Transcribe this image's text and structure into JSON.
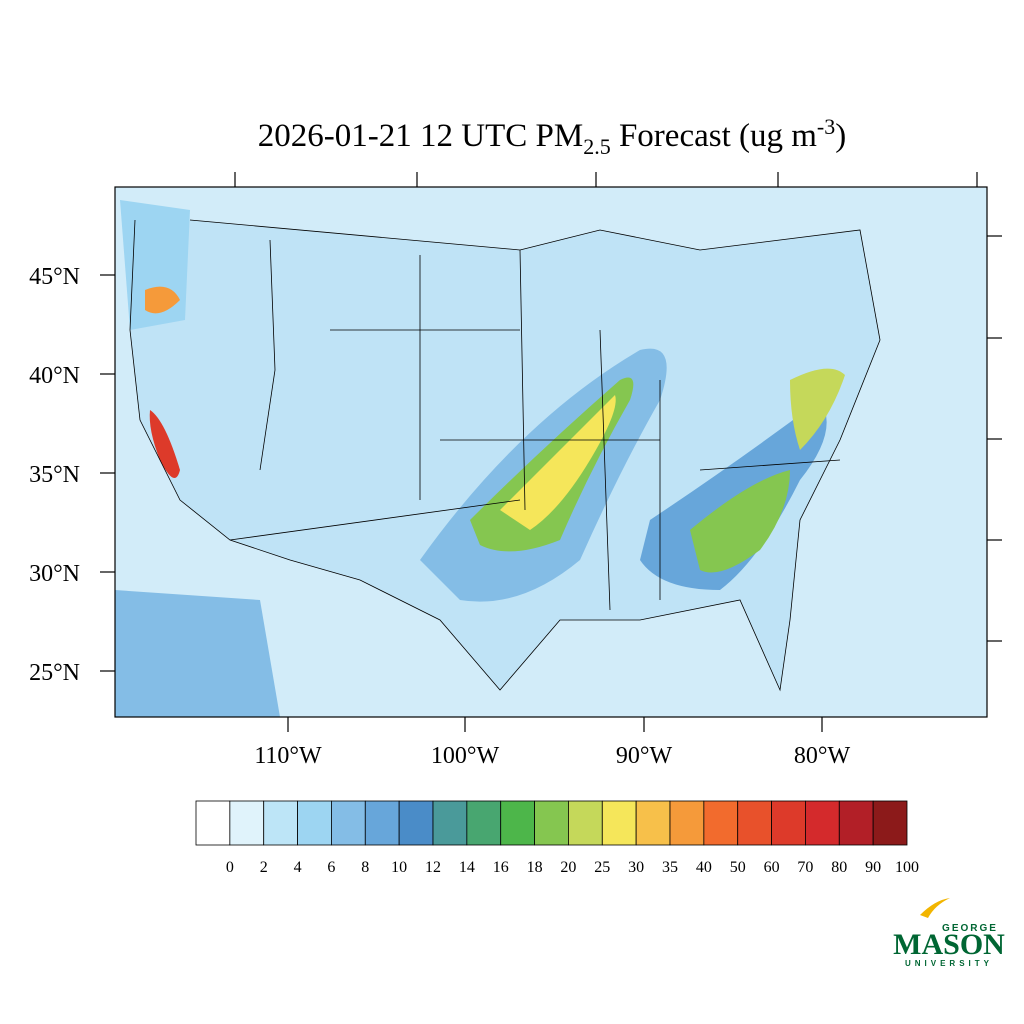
{
  "title": {
    "prefix": "2026-01-21 12 UTC PM",
    "subscript": "2.5",
    "middle": " Forecast (ug m",
    "superscript": "-3",
    "suffix": ")"
  },
  "lat_labels": [
    "45°N",
    "40°N",
    "35°N",
    "30°N",
    "25°N"
  ],
  "lon_labels": [
    "110°W",
    "100°W",
    "90°W",
    "80°W"
  ],
  "colorbar": {
    "labels": [
      0,
      2,
      4,
      6,
      8,
      10,
      12,
      14,
      16,
      18,
      20,
      25,
      30,
      35,
      40,
      50,
      60,
      70,
      80,
      90,
      100
    ],
    "colors": [
      "#ffffff",
      "#e0f3fb",
      "#bde5f7",
      "#9dd5f2",
      "#84bde6",
      "#67a6da",
      "#4a8cc8",
      "#4a9a9a",
      "#48a670",
      "#4db64a",
      "#85c650",
      "#c5d85a",
      "#f5e65a",
      "#f7c04a",
      "#f59a3a",
      "#f26b2d",
      "#e8512b",
      "#dd3a2a",
      "#d42a2c",
      "#b21f27",
      "#8c1a1a"
    ]
  },
  "logo": {
    "top": "GEORGE",
    "name": "MASON",
    "bottom": "UNIVERSITY"
  }
}
